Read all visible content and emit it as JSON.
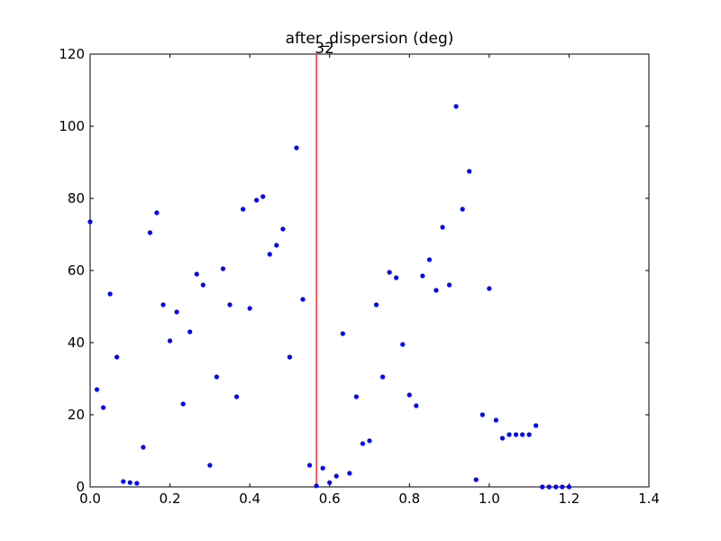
{
  "chart_data": {
    "type": "scatter",
    "title": "after_dispersion (deg)",
    "xlabel": "",
    "ylabel": "",
    "xlim": [
      0,
      1.4
    ],
    "ylim": [
      0,
      120
    ],
    "x_ticks": [
      0.0,
      0.2,
      0.4,
      0.6,
      0.8,
      1.0,
      1.2,
      1.4
    ],
    "x_tick_labels": [
      "0.0",
      "0.2",
      "0.4",
      "0.6",
      "0.8",
      "1.0",
      "1.2",
      "1.4"
    ],
    "y_ticks": [
      0,
      20,
      40,
      60,
      80,
      100,
      120
    ],
    "y_tick_labels": [
      "0",
      "20",
      "40",
      "60",
      "80",
      "100",
      "120"
    ],
    "grid": false,
    "marker_color": "#0000ff",
    "vline": {
      "x": 0.567,
      "label": "32",
      "color": "#ff0000"
    },
    "series": [
      {
        "points": [
          [
            0.0,
            73.5
          ],
          [
            0.017,
            27.0
          ],
          [
            0.033,
            22.0
          ],
          [
            0.05,
            53.5
          ],
          [
            0.067,
            36.0
          ],
          [
            0.083,
            1.5
          ],
          [
            0.1,
            1.2
          ],
          [
            0.117,
            1.0
          ],
          [
            0.133,
            11.0
          ],
          [
            0.15,
            70.5
          ],
          [
            0.167,
            76.0
          ],
          [
            0.183,
            50.5
          ],
          [
            0.2,
            40.5
          ],
          [
            0.217,
            48.5
          ],
          [
            0.233,
            23.0
          ],
          [
            0.25,
            43.0
          ],
          [
            0.267,
            59.0
          ],
          [
            0.283,
            56.0
          ],
          [
            0.3,
            6.0
          ],
          [
            0.317,
            30.5
          ],
          [
            0.333,
            60.5
          ],
          [
            0.35,
            50.5
          ],
          [
            0.367,
            25.0
          ],
          [
            0.383,
            77.0
          ],
          [
            0.4,
            49.5
          ],
          [
            0.417,
            79.5
          ],
          [
            0.433,
            80.5
          ],
          [
            0.45,
            64.5
          ],
          [
            0.467,
            67.0
          ],
          [
            0.483,
            71.5
          ],
          [
            0.5,
            36.0
          ],
          [
            0.517,
            94.0
          ],
          [
            0.533,
            52.0
          ],
          [
            0.55,
            6.0
          ],
          [
            0.567,
            0.3
          ],
          [
            0.583,
            5.2
          ],
          [
            0.6,
            1.2
          ],
          [
            0.617,
            3.0
          ],
          [
            0.633,
            42.5
          ],
          [
            0.65,
            3.8
          ],
          [
            0.667,
            25.0
          ],
          [
            0.683,
            12.0
          ],
          [
            0.7,
            12.8
          ],
          [
            0.717,
            50.5
          ],
          [
            0.733,
            30.5
          ],
          [
            0.75,
            59.5
          ],
          [
            0.767,
            58.0
          ],
          [
            0.783,
            39.5
          ],
          [
            0.8,
            25.5
          ],
          [
            0.817,
            22.5
          ],
          [
            0.833,
            58.5
          ],
          [
            0.85,
            63.0
          ],
          [
            0.867,
            54.5
          ],
          [
            0.883,
            72.0
          ],
          [
            0.9,
            56.0
          ],
          [
            0.917,
            105.5
          ],
          [
            0.933,
            77.0
          ],
          [
            0.95,
            87.5
          ],
          [
            0.967,
            2.0
          ],
          [
            0.983,
            20.0
          ],
          [
            1.0,
            55.0
          ],
          [
            1.017,
            18.5
          ],
          [
            1.033,
            13.5
          ],
          [
            1.05,
            14.5
          ],
          [
            1.067,
            14.5
          ],
          [
            1.083,
            14.5
          ],
          [
            1.1,
            14.5
          ],
          [
            1.117,
            17.0
          ],
          [
            1.133,
            0.0
          ],
          [
            1.15,
            0.0
          ],
          [
            1.167,
            0.0
          ],
          [
            1.183,
            0.0
          ],
          [
            1.2,
            0.0
          ]
        ]
      }
    ]
  }
}
